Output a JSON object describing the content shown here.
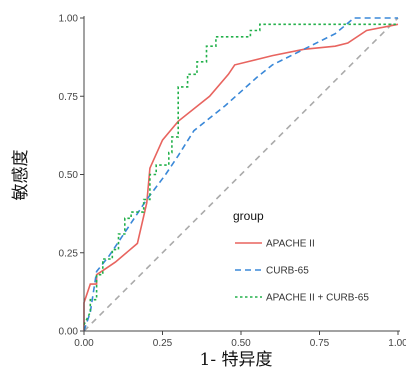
{
  "chart_data": {
    "type": "line",
    "xlabel": "1- 特异度",
    "ylabel": "敏感度",
    "xlim": [
      0,
      1
    ],
    "ylim": [
      0,
      1
    ],
    "x_ticks": [
      "0.00",
      "0.25",
      "0.50",
      "0.75",
      "1.00"
    ],
    "y_ticks": [
      "0.00",
      "0.25",
      "0.50",
      "0.75",
      "1.00"
    ],
    "grid": false,
    "legend": {
      "title": "group",
      "placement": "bottom-right",
      "entries": [
        "APACHE II",
        "CURB-65",
        "APACHE II + CURB-65"
      ]
    },
    "reference_line": {
      "from": [
        0,
        0
      ],
      "to": [
        1,
        1
      ],
      "color": "#aaaaaa",
      "style": "dashed"
    },
    "series": [
      {
        "name": "APACHE II",
        "color": "#e8645f",
        "style": "solid",
        "points": [
          [
            0,
            0
          ],
          [
            0,
            0.09
          ],
          [
            0.02,
            0.15
          ],
          [
            0.04,
            0.15
          ],
          [
            0.04,
            0.18
          ],
          [
            0.07,
            0.2
          ],
          [
            0.1,
            0.22
          ],
          [
            0.17,
            0.28
          ],
          [
            0.2,
            0.41
          ],
          [
            0.21,
            0.52
          ],
          [
            0.25,
            0.61
          ],
          [
            0.3,
            0.67
          ],
          [
            0.4,
            0.75
          ],
          [
            0.46,
            0.82
          ],
          [
            0.48,
            0.85
          ],
          [
            0.6,
            0.88
          ],
          [
            0.7,
            0.9
          ],
          [
            0.8,
            0.91
          ],
          [
            0.84,
            0.92
          ],
          [
            0.9,
            0.96
          ],
          [
            1,
            0.98
          ]
        ]
      },
      {
        "name": "CURB-65",
        "color": "#3a88d8",
        "style": "dashed",
        "points": [
          [
            0,
            0
          ],
          [
            0.02,
            0.06
          ],
          [
            0.04,
            0.19
          ],
          [
            0.08,
            0.24
          ],
          [
            0.12,
            0.3
          ],
          [
            0.2,
            0.42
          ],
          [
            0.26,
            0.5
          ],
          [
            0.3,
            0.56
          ],
          [
            0.35,
            0.64
          ],
          [
            0.45,
            0.72
          ],
          [
            0.55,
            0.81
          ],
          [
            0.6,
            0.85
          ],
          [
            0.7,
            0.9
          ],
          [
            0.8,
            0.95
          ],
          [
            0.86,
            1
          ],
          [
            1,
            1
          ]
        ]
      },
      {
        "name": "APACHE II + CURB-65",
        "color": "#22b04a",
        "style": "dotted",
        "points": [
          [
            0,
            0.02
          ],
          [
            0.02,
            0.06
          ],
          [
            0.02,
            0.1
          ],
          [
            0.04,
            0.1
          ],
          [
            0.04,
            0.18
          ],
          [
            0.06,
            0.18
          ],
          [
            0.06,
            0.23
          ],
          [
            0.09,
            0.23
          ],
          [
            0.09,
            0.26
          ],
          [
            0.11,
            0.26
          ],
          [
            0.11,
            0.31
          ],
          [
            0.13,
            0.31
          ],
          [
            0.13,
            0.36
          ],
          [
            0.15,
            0.36
          ],
          [
            0.15,
            0.38
          ],
          [
            0.19,
            0.38
          ],
          [
            0.19,
            0.42
          ],
          [
            0.21,
            0.42
          ],
          [
            0.21,
            0.5
          ],
          [
            0.23,
            0.5
          ],
          [
            0.23,
            0.53
          ],
          [
            0.27,
            0.53
          ],
          [
            0.27,
            0.57
          ],
          [
            0.28,
            0.57
          ],
          [
            0.28,
            0.62
          ],
          [
            0.3,
            0.62
          ],
          [
            0.3,
            0.78
          ],
          [
            0.33,
            0.78
          ],
          [
            0.33,
            0.82
          ],
          [
            0.36,
            0.82
          ],
          [
            0.36,
            0.86
          ],
          [
            0.39,
            0.86
          ],
          [
            0.39,
            0.91
          ],
          [
            0.42,
            0.91
          ],
          [
            0.42,
            0.94
          ],
          [
            0.53,
            0.94
          ],
          [
            0.53,
            0.96
          ],
          [
            0.56,
            0.96
          ],
          [
            0.56,
            0.98
          ],
          [
            1,
            0.98
          ]
        ]
      }
    ]
  }
}
